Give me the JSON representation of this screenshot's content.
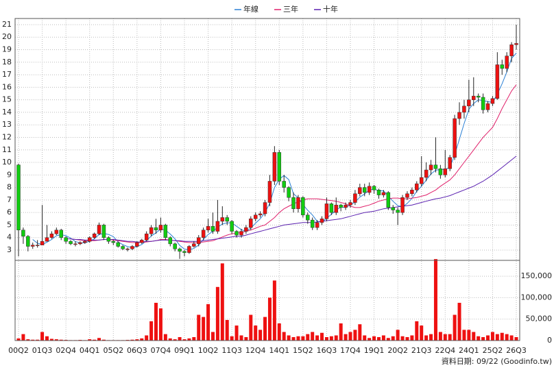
{
  "chart_data": [
    {
      "type": "candlestick",
      "up_color": "#ee1111",
      "down_color": "#11cc11",
      "ylim": [
        2.18,
        21.49
      ],
      "yticks": [
        3,
        4,
        5,
        6,
        7,
        8,
        9,
        10,
        11,
        12,
        13,
        14,
        15,
        16,
        17,
        18,
        19,
        20,
        21
      ],
      "grid": true,
      "open": [
        9.8,
        4.6,
        4.1,
        3.3,
        3.4,
        3.4,
        3.7,
        4.0,
        4.3,
        4.6,
        4.0,
        3.7,
        3.5,
        3.5,
        3.6,
        3.7,
        4.0,
        4.3,
        5.0,
        4.0,
        3.7,
        3.6,
        3.3,
        3.1,
        3.1,
        3.3,
        3.6,
        3.8,
        4.3,
        4.8,
        4.6,
        5.0,
        4.0,
        3.5,
        3.1,
        2.9,
        2.8,
        3.3,
        3.5,
        4.0,
        4.6,
        4.9,
        4.5,
        5.3,
        5.6,
        5.3,
        4.5,
        4.2,
        4.5,
        4.8,
        5.5,
        5.8,
        5.9,
        6.8,
        8.5,
        10.8,
        8.5,
        8.0,
        7.2,
        6.3,
        7.2,
        5.8,
        5.4,
        4.8,
        5.2,
        5.5,
        6.7,
        6.0,
        6.6,
        6.4,
        6.6,
        6.8,
        7.5,
        8.0,
        7.6,
        8.1,
        7.8,
        7.4,
        7.6,
        6.4,
        6.2,
        6.0,
        7.2,
        7.5,
        7.8,
        8.3,
        8.8,
        9.4,
        9.8,
        9.5,
        9.0,
        9.5,
        10.4,
        13.5,
        14.0,
        14.5,
        15.0,
        15.3,
        15.2,
        14.2,
        14.7,
        15.1,
        17.8,
        17.5,
        18.5,
        19.4
      ],
      "high": [
        9.9,
        4.8,
        4.2,
        3.6,
        3.8,
        6.6,
        5.0,
        4.5,
        4.8,
        4.7,
        4.1,
        3.8,
        3.7,
        3.7,
        3.8,
        4.1,
        4.4,
        5.2,
        5.1,
        4.1,
        3.8,
        3.7,
        3.4,
        3.2,
        3.4,
        3.7,
        3.9,
        4.5,
        5.0,
        5.5,
        5.6,
        5.1,
        4.1,
        3.6,
        3.2,
        3.0,
        3.4,
        3.7,
        4.2,
        4.8,
        5.5,
        6.0,
        7.0,
        6.5,
        5.8,
        5.4,
        4.6,
        4.7,
        5.0,
        5.7,
        6.0,
        6.1,
        7.0,
        9.0,
        11.3,
        11.0,
        9.0,
        8.1,
        7.6,
        7.4,
        7.3,
        6.0,
        5.6,
        5.4,
        5.7,
        7.2,
        6.8,
        7.2,
        6.7,
        6.8,
        7.0,
        7.8,
        8.3,
        8.3,
        8.4,
        8.2,
        7.9,
        7.8,
        7.7,
        6.6,
        6.4,
        7.4,
        7.7,
        8.0,
        8.5,
        10.5,
        10.0,
        10.2,
        12.0,
        9.8,
        11.0,
        10.6,
        13.8,
        14.8,
        15.0,
        16.6,
        16.8,
        15.5,
        15.5,
        14.9,
        15.3,
        18.8,
        18.2,
        18.8,
        19.6,
        21.0
      ],
      "low": [
        2.5,
        3.5,
        2.9,
        3.1,
        3.2,
        3.5,
        3.7,
        3.9,
        4.2,
        3.8,
        3.5,
        3.4,
        3.3,
        3.4,
        3.5,
        3.6,
        3.9,
        4.2,
        3.8,
        3.5,
        3.4,
        3.2,
        3.0,
        2.9,
        3.0,
        3.2,
        3.5,
        3.7,
        4.1,
        4.3,
        4.4,
        3.8,
        3.3,
        2.9,
        2.3,
        2.5,
        2.7,
        3.2,
        3.3,
        3.8,
        4.4,
        4.3,
        4.3,
        5.0,
        5.0,
        4.3,
        4.0,
        4.0,
        4.3,
        4.6,
        5.3,
        5.6,
        5.7,
        6.5,
        8.2,
        8.2,
        7.6,
        6.9,
        6.0,
        6.0,
        5.6,
        5.1,
        4.6,
        4.6,
        5.0,
        5.3,
        5.8,
        5.8,
        6.1,
        6.2,
        6.4,
        6.6,
        7.3,
        7.3,
        7.4,
        7.5,
        7.1,
        7.2,
        6.2,
        5.9,
        5.0,
        5.8,
        7.0,
        7.3,
        7.6,
        8.1,
        8.5,
        9.0,
        9.2,
        8.7,
        8.8,
        9.3,
        10.2,
        13.0,
        13.5,
        14.0,
        14.5,
        14.8,
        13.9,
        14.0,
        14.5,
        15.0,
        17.0,
        17.2,
        18.0,
        19.0
      ],
      "close": [
        4.6,
        4.1,
        3.3,
        3.4,
        3.4,
        3.7,
        4.0,
        4.3,
        4.6,
        4.0,
        3.7,
        3.5,
        3.5,
        3.6,
        3.7,
        4.0,
        4.3,
        5.0,
        4.0,
        3.7,
        3.6,
        3.3,
        3.1,
        3.1,
        3.3,
        3.6,
        3.8,
        4.3,
        4.8,
        4.6,
        5.0,
        4.0,
        3.5,
        3.1,
        2.9,
        2.8,
        3.3,
        3.5,
        4.0,
        4.6,
        4.9,
        4.5,
        5.3,
        5.6,
        5.3,
        4.5,
        4.2,
        4.5,
        4.8,
        5.5,
        5.8,
        5.9,
        6.8,
        8.5,
        10.8,
        8.5,
        8.0,
        7.2,
        6.3,
        7.2,
        5.8,
        5.4,
        4.8,
        5.2,
        5.5,
        6.7,
        6.0,
        6.6,
        6.4,
        6.6,
        6.8,
        7.5,
        8.0,
        7.6,
        8.1,
        7.8,
        7.4,
        7.6,
        6.4,
        6.2,
        6.0,
        7.2,
        7.5,
        7.8,
        8.3,
        8.8,
        9.4,
        9.8,
        9.5,
        9.0,
        9.5,
        10.4,
        13.5,
        14.0,
        14.5,
        15.0,
        15.3,
        15.2,
        14.2,
        14.7,
        15.1,
        17.8,
        17.5,
        18.5,
        19.4,
        19.5
      ],
      "series": [
        {
          "name": "年線",
          "color": "#2a7fd4",
          "values": [
            null,
            null,
            null,
            3.85,
            3.55,
            3.45,
            3.63,
            3.85,
            4.15,
            4.23,
            4.15,
            3.95,
            3.68,
            3.58,
            3.58,
            3.7,
            3.9,
            4.25,
            4.33,
            4.25,
            4.08,
            3.65,
            3.43,
            3.28,
            3.2,
            3.28,
            3.45,
            3.75,
            4.13,
            4.38,
            4.68,
            4.6,
            4.28,
            3.9,
            3.38,
            3.08,
            3.03,
            3.13,
            3.4,
            3.85,
            4.25,
            4.5,
            4.83,
            5.08,
            5.18,
            5.18,
            4.9,
            4.63,
            4.5,
            4.75,
            5.15,
            5.5,
            6.0,
            6.75,
            8.0,
            8.65,
            8.95,
            8.63,
            7.5,
            7.18,
            6.63,
            6.18,
            5.8,
            5.3,
            5.23,
            5.55,
            5.85,
            6.2,
            6.43,
            6.4,
            6.6,
            6.83,
            7.23,
            7.48,
            7.8,
            7.88,
            7.73,
            7.73,
            7.3,
            6.9,
            6.55,
            6.45,
            6.73,
            7.13,
            7.7,
            8.1,
            8.58,
            9.08,
            9.38,
            9.43,
            9.45,
            9.6,
            10.6,
            11.85,
            13.1,
            14.25,
            14.7,
            15.0,
            14.93,
            14.85,
            14.8,
            15.45,
            16.28,
            17.23,
            18.3,
            18.73
          ]
        },
        {
          "name": "三年",
          "color": "#e0206a",
          "values": [
            null,
            null,
            null,
            null,
            null,
            null,
            null,
            null,
            null,
            null,
            null,
            3.9,
            3.85,
            3.8,
            3.75,
            3.75,
            3.75,
            3.8,
            3.85,
            3.85,
            3.8,
            3.75,
            3.7,
            3.65,
            3.6,
            3.6,
            3.6,
            3.65,
            3.7,
            3.75,
            3.85,
            3.85,
            3.8,
            3.75,
            3.7,
            3.65,
            3.6,
            3.6,
            3.6,
            3.65,
            3.7,
            3.75,
            3.9,
            4.05,
            4.2,
            4.3,
            4.35,
            4.4,
            4.5,
            4.6,
            4.75,
            4.9,
            5.0,
            5.3,
            5.6,
            6.0,
            6.3,
            6.5,
            6.7,
            6.85,
            7.0,
            7.1,
            7.1,
            7.1,
            7.05,
            7.0,
            6.95,
            6.9,
            6.8,
            6.7,
            6.5,
            6.4,
            6.4,
            6.5,
            6.6,
            6.75,
            6.9,
            7.0,
            7.1,
            7.15,
            7.15,
            7.1,
            7.1,
            7.15,
            7.2,
            7.3,
            7.4,
            7.6,
            7.8,
            8.1,
            8.35,
            8.6,
            9.0,
            9.5,
            10.0,
            10.5,
            11.0,
            11.5,
            12.0,
            12.4,
            12.8,
            13.5,
            14.3,
            15.0,
            15.7,
            16.2
          ]
        },
        {
          "name": "十年",
          "color": "#5a20b0",
          "values": [
            null,
            null,
            null,
            null,
            null,
            null,
            null,
            null,
            null,
            null,
            3.9,
            3.9,
            3.85,
            3.85,
            3.8,
            3.8,
            3.8,
            3.8,
            3.85,
            3.85,
            3.85,
            3.8,
            3.75,
            3.7,
            3.7,
            3.65,
            3.65,
            3.7,
            3.7,
            3.75,
            3.8,
            3.8,
            3.8,
            3.75,
            3.75,
            3.7,
            3.7,
            3.7,
            3.7,
            3.75,
            3.8,
            3.85,
            3.9,
            3.95,
            4.0,
            4.05,
            4.1,
            4.1,
            4.2,
            4.3,
            4.4,
            4.5,
            4.6,
            4.7,
            4.8,
            4.9,
            5.0,
            5.05,
            5.1,
            5.15,
            5.2,
            5.2,
            5.2,
            5.25,
            5.3,
            5.35,
            5.4,
            5.45,
            5.5,
            5.6,
            5.7,
            5.8,
            5.9,
            6.0,
            6.05,
            6.1,
            6.2,
            6.3,
            6.35,
            6.4,
            6.45,
            6.5,
            6.55,
            6.6,
            6.7,
            6.8,
            6.9,
            7.0,
            7.1,
            7.15,
            7.25,
            7.35,
            7.5,
            7.65,
            7.8,
            7.95,
            8.1,
            8.3,
            8.5,
            8.75,
            9.0,
            9.3,
            9.6,
            9.9,
            10.2,
            10.5
          ]
        }
      ]
    },
    {
      "type": "bar",
      "color": "#ee1111",
      "ylim": [
        0,
        187000
      ],
      "yticks": [
        0,
        {
          "value": 50000,
          "label": "50,000"
        },
        {
          "value": 100000,
          "label": "100,000"
        },
        {
          "value": 150000,
          "label": "150,000"
        }
      ],
      "grid": true,
      "categories": [
        "00Q2",
        null,
        null,
        null,
        null,
        "01Q3",
        null,
        null,
        null,
        null,
        "02Q4",
        null,
        null,
        null,
        null,
        "04Q1",
        null,
        null,
        null,
        null,
        "05Q2",
        null,
        null,
        null,
        null,
        "06Q3",
        null,
        null,
        null,
        null,
        "07Q4",
        null,
        null,
        null,
        null,
        "09Q1",
        null,
        null,
        null,
        null,
        "10Q2",
        null,
        null,
        null,
        null,
        "11Q3",
        null,
        null,
        null,
        null,
        "12Q4",
        null,
        null,
        null,
        null,
        "14Q1",
        null,
        null,
        null,
        null,
        "15Q2",
        null,
        null,
        null,
        null,
        "16Q3",
        null,
        null,
        null,
        null,
        "17Q4",
        null,
        null,
        null,
        null,
        "19Q1",
        null,
        null,
        null,
        null,
        "20Q2",
        null,
        null,
        null,
        null,
        "21Q3",
        null,
        null,
        null,
        null,
        "22Q4",
        null,
        null,
        null,
        null,
        "24Q1",
        null,
        null,
        null,
        null,
        "25Q2",
        null,
        null,
        null,
        null,
        "26Q3"
      ],
      "values": [
        5000,
        15000,
        3000,
        2000,
        2000,
        20000,
        10000,
        4000,
        3000,
        2000,
        1500,
        1000,
        1000,
        1500,
        1000,
        3000,
        2000,
        6000,
        2000,
        1000,
        1000,
        1000,
        1000,
        1500,
        2000,
        3000,
        5000,
        12000,
        45000,
        88000,
        75000,
        15000,
        5000,
        3000,
        8000,
        3000,
        5000,
        8000,
        60000,
        55000,
        85000,
        20000,
        125000,
        180000,
        48000,
        10000,
        35000,
        12000,
        8000,
        60000,
        35000,
        25000,
        55000,
        100000,
        140000,
        40000,
        20000,
        12000,
        8000,
        10000,
        10000,
        15000,
        20000,
        12000,
        18000,
        8000,
        10000,
        12000,
        40000,
        15000,
        20000,
        25000,
        38000,
        12000,
        6000,
        10000,
        8000,
        12000,
        6000,
        10000,
        25000,
        10000,
        8000,
        12000,
        45000,
        35000,
        12000,
        15000,
        190000,
        20000,
        15000,
        15000,
        60000,
        88000,
        25000,
        25000,
        20000,
        10000,
        8000,
        12000,
        20000,
        15000,
        18000,
        15000,
        12000,
        8000
      ],
      "source": "資料日期: 09/22 (Goodinfo.tw)"
    }
  ]
}
